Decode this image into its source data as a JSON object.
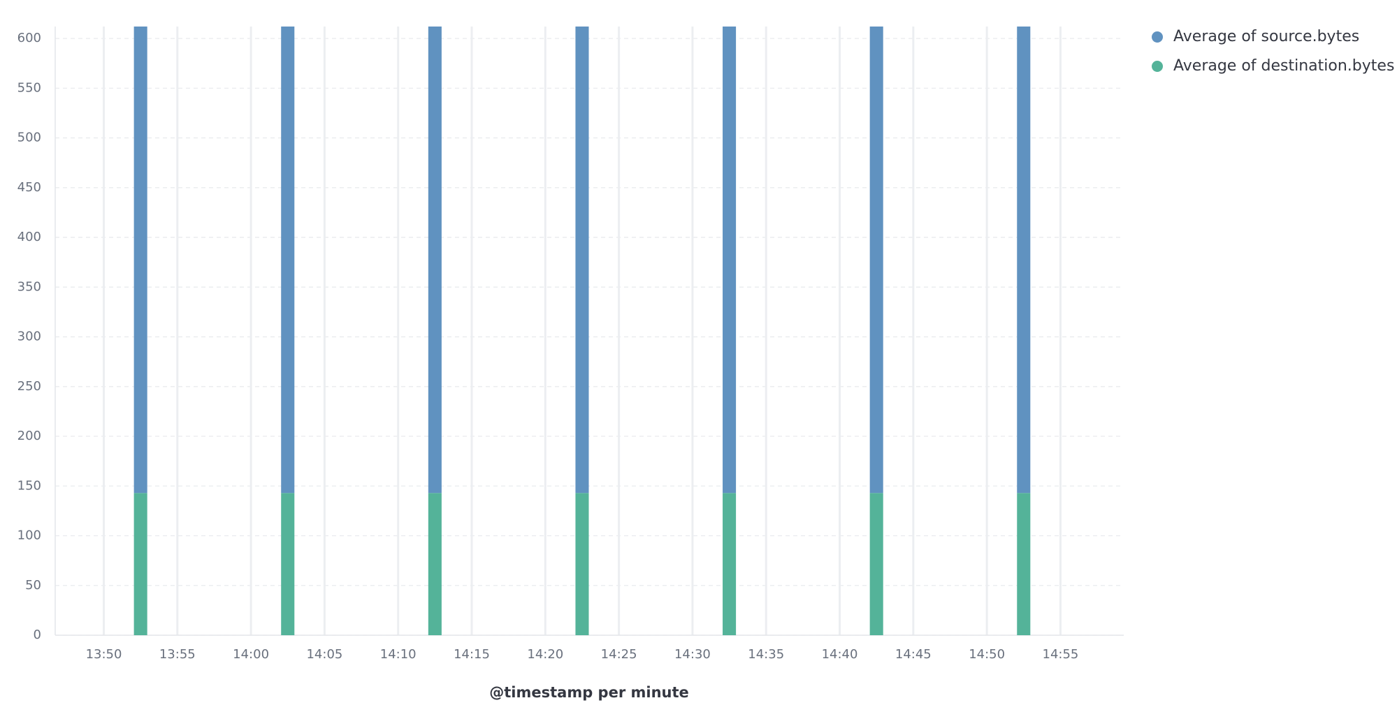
{
  "chart_data": {
    "type": "stacked-bar",
    "x_label": "@timestamp per minute",
    "x": [
      "13:52",
      "14:02",
      "14:12",
      "14:22",
      "14:32",
      "14:42",
      "14:52"
    ],
    "series": [
      {
        "name": "Average of destination.bytes",
        "color": "#54b399",
        "values": [
          143,
          143,
          143,
          143,
          143,
          143,
          143
        ]
      },
      {
        "name": "Average of source.bytes",
        "color": "#6092c0",
        "values": [
          470,
          470,
          470,
          470,
          470,
          470,
          470
        ]
      }
    ],
    "legend_order": [
      1,
      0
    ],
    "xlim": [
      "13:46:42",
      "14:59:18"
    ],
    "xticks": [
      "13:50",
      "13:55",
      "14:00",
      "14:05",
      "14:10",
      "14:15",
      "14:20",
      "14:25",
      "14:30",
      "14:35",
      "14:40",
      "14:45",
      "14:50",
      "14:55"
    ],
    "ylim": [
      0,
      612
    ],
    "yticks": [
      0,
      50,
      100,
      150,
      200,
      250,
      300,
      350,
      400,
      450,
      500,
      550,
      600
    ],
    "grid": true,
    "legend": "top-right"
  }
}
